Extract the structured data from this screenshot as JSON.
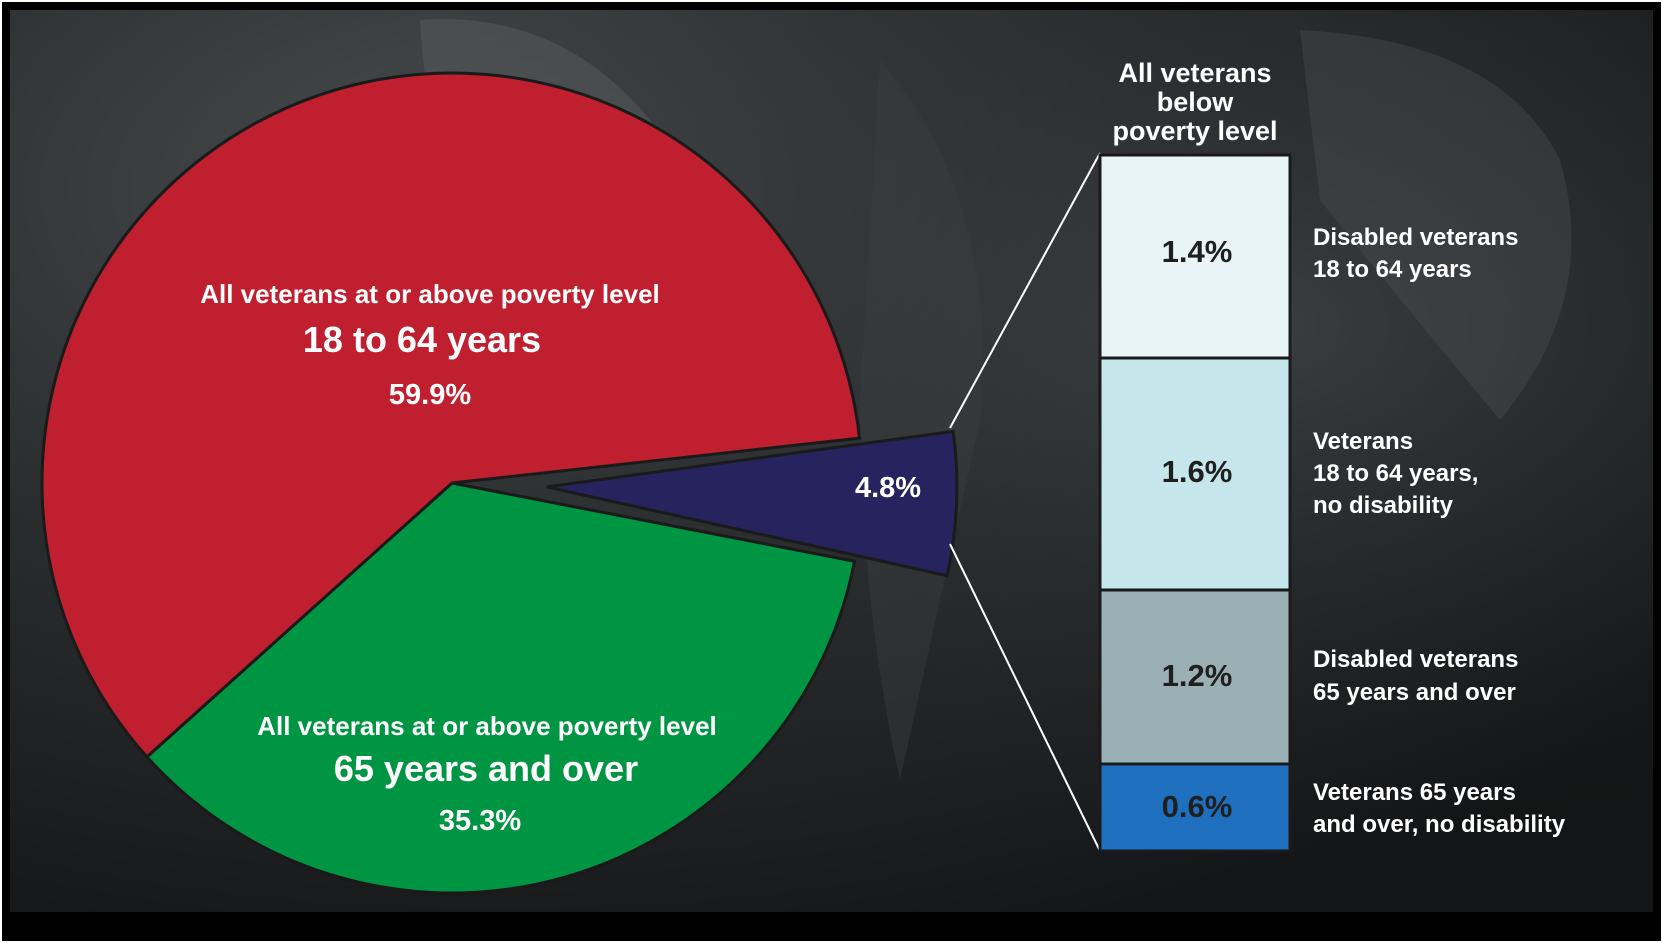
{
  "chart_data": {
    "type": "pie",
    "slices": [
      {
        "name": "All veterans at or above poverty level",
        "age": "18 to 64 years",
        "value": 59.9,
        "label": "59.9%",
        "color": "#c01f2f"
      },
      {
        "name": "All veterans at or above poverty level",
        "age": "65 years and over",
        "value": 35.3,
        "label": "35.3%",
        "color": "#009543"
      },
      {
        "name": "",
        "age": "",
        "value": 4.8,
        "label": "4.8%",
        "color": "#27235f"
      }
    ],
    "breakdown": {
      "title_lines": [
        "All veterans",
        "below",
        "poverty level"
      ],
      "segments": [
        {
          "value": 1.4,
          "label": "1.4%",
          "desc_lines": [
            "Disabled veterans",
            "18 to 64 years"
          ],
          "color": "#e8f4f5"
        },
        {
          "value": 1.6,
          "label": "1.6%",
          "desc_lines": [
            "Veterans",
            "18 to 64 years,",
            "no disability"
          ],
          "color": "#c5e6ea"
        },
        {
          "value": 1.2,
          "label": "1.2%",
          "desc_lines": [
            "Disabled veterans",
            "65 years and over"
          ],
          "color": "#9ab0b4"
        },
        {
          "value": 0.6,
          "label": "0.6%",
          "desc_lines": [
            "Veterans 65 years",
            "and over, no disability"
          ],
          "color": "#1f6fbf"
        }
      ]
    }
  }
}
